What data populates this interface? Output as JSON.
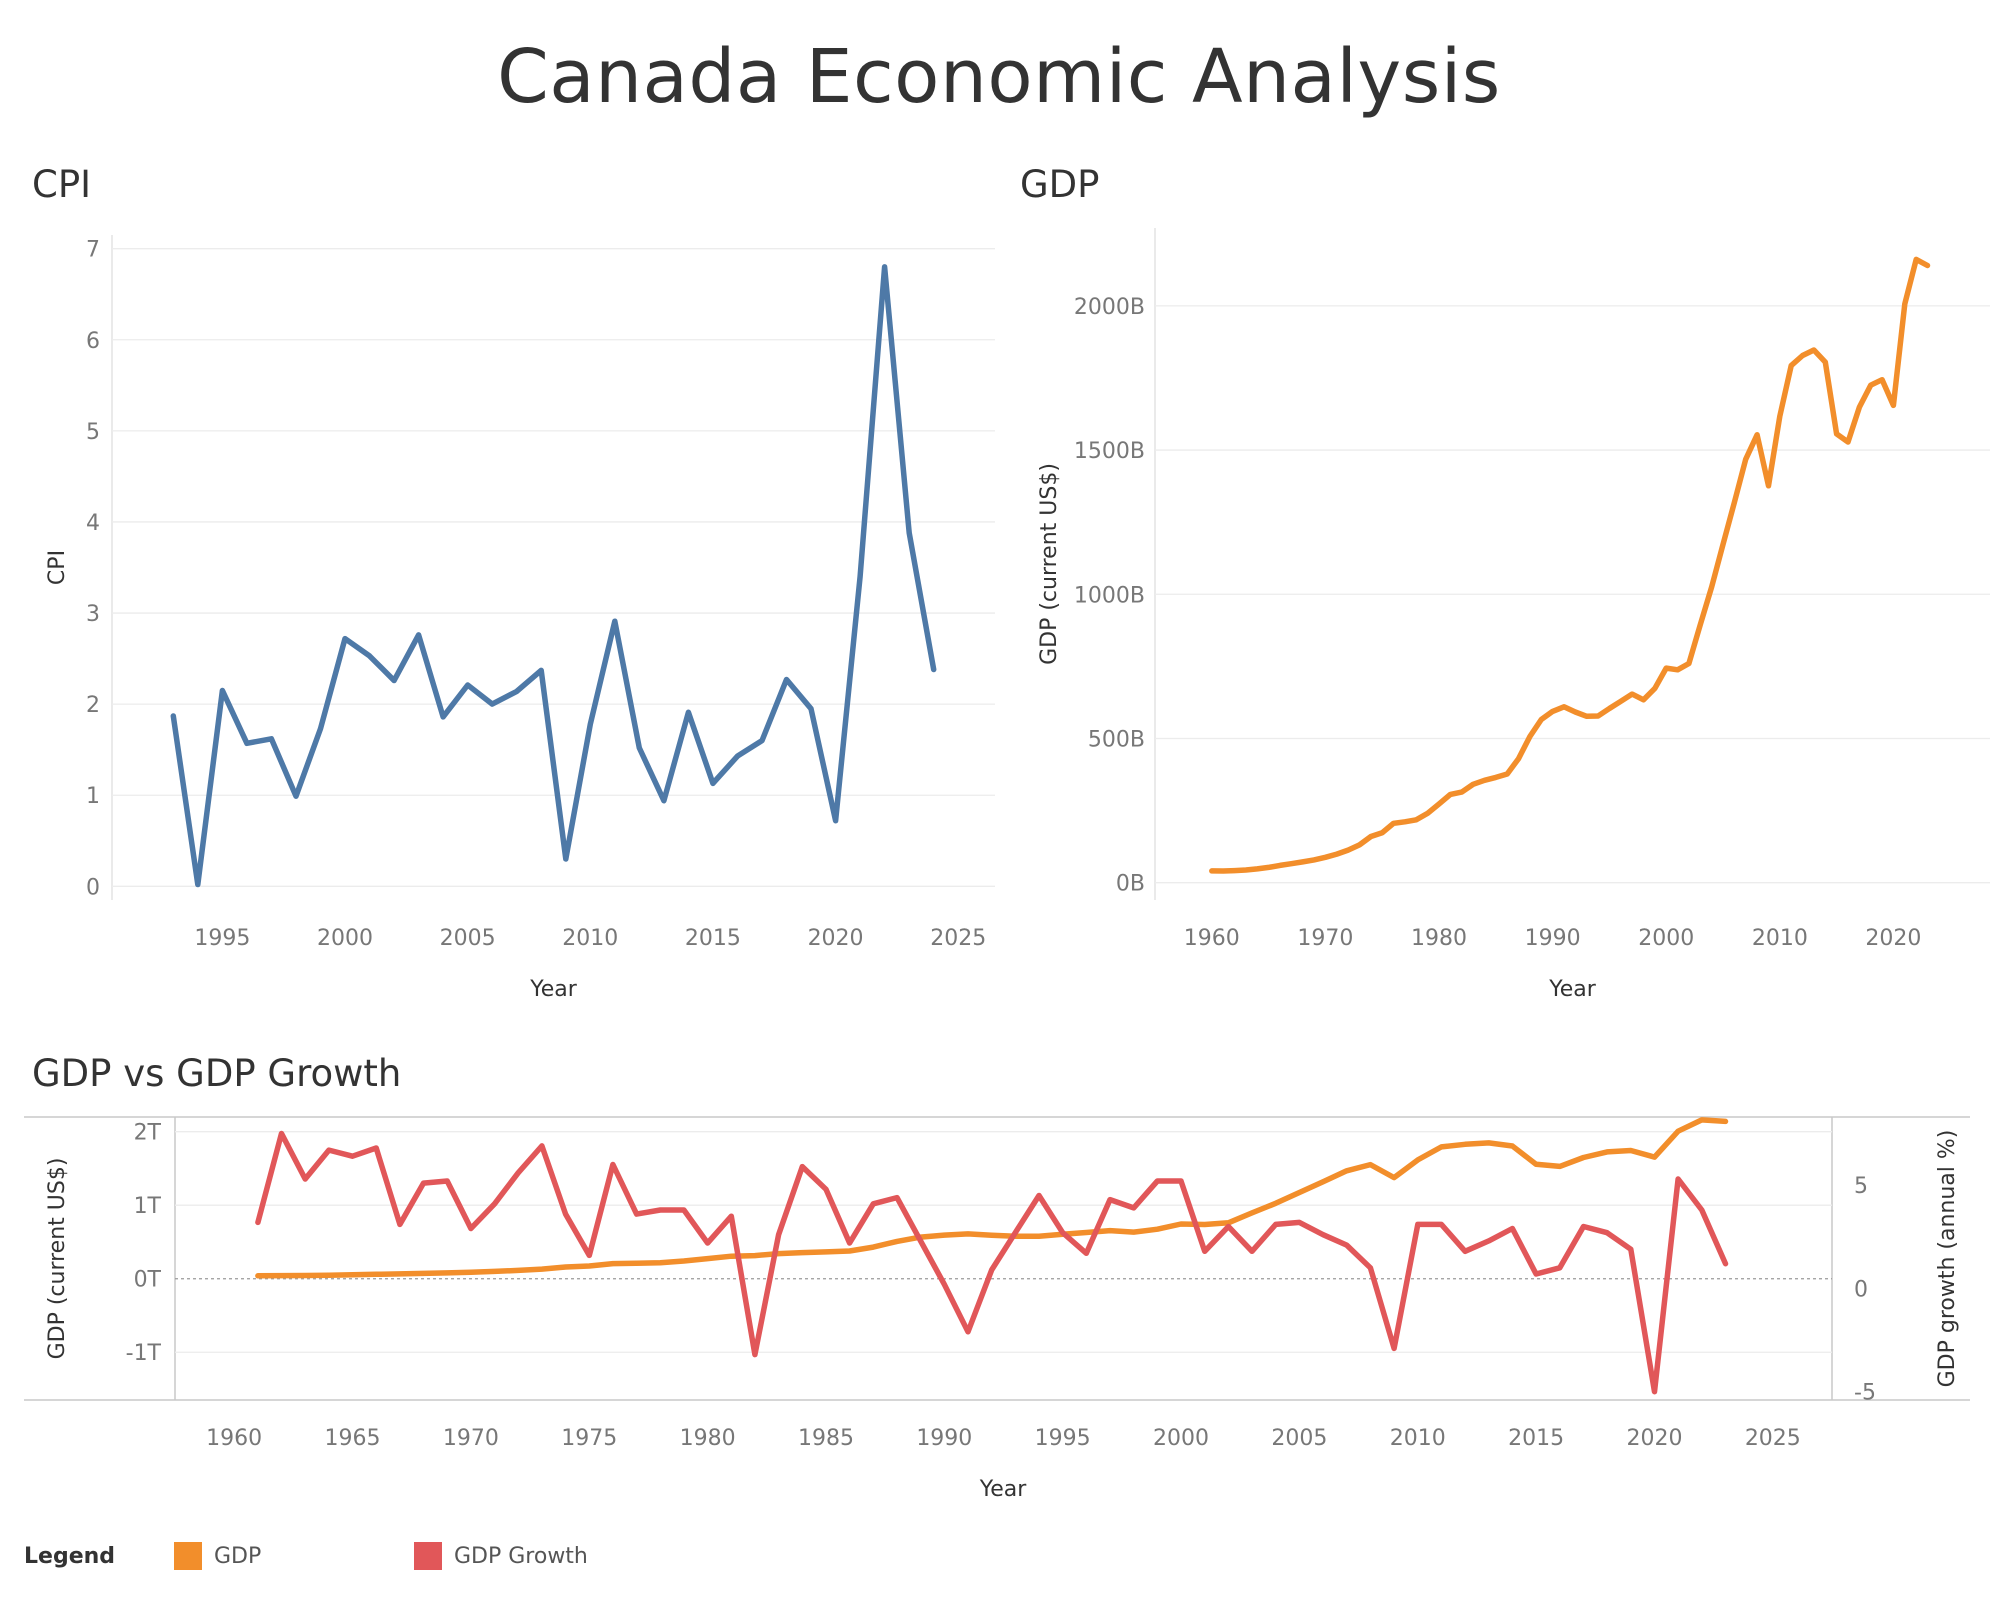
{
  "title": "Canada Economic Analysis",
  "colors": {
    "cpi": "#4e79a7",
    "gdp": "#f28e2b",
    "growth": "#e15759"
  },
  "chart_data": [
    {
      "id": "cpi",
      "type": "line",
      "title": "CPI",
      "xlabel": "Year",
      "ylabel": "CPI",
      "xlim": [
        1990.5,
        2026.5
      ],
      "ylim": [
        -0.15,
        7.15
      ],
      "xticks": [
        1995,
        2000,
        2005,
        2010,
        2015,
        2020,
        2025
      ],
      "yticks": [
        0,
        1,
        2,
        3,
        4,
        5,
        6,
        7
      ],
      "grid": true,
      "series": [
        {
          "x": [
            1993,
            1994,
            1995,
            1996,
            1997,
            1998,
            1999,
            2000,
            2001,
            2002,
            2003,
            2004,
            2005,
            2006,
            2007,
            2008,
            2009,
            2010,
            2011,
            2012,
            2013,
            2014,
            2015,
            2016,
            2017,
            2018,
            2019,
            2020,
            2021,
            2022,
            2023,
            2024
          ],
          "values": [
            1.87,
            0.02,
            2.15,
            1.57,
            1.62,
            0.99,
            1.73,
            2.72,
            2.53,
            2.26,
            2.76,
            1.86,
            2.21,
            2.0,
            2.14,
            2.37,
            0.3,
            1.78,
            2.91,
            1.52,
            0.94,
            1.91,
            1.13,
            1.43,
            1.6,
            2.27,
            1.95,
            0.72,
            3.4,
            6.8,
            3.88,
            2.38
          ]
        }
      ]
    },
    {
      "id": "gdp",
      "type": "line",
      "title": "GDP",
      "xlabel": "Year",
      "ylabel": "GDP (current US$)",
      "xlim": [
        1955,
        2028.5
      ],
      "ylim": [
        -60,
        2270
      ],
      "xticks": [
        1960,
        1970,
        1980,
        1990,
        2000,
        2010,
        2020
      ],
      "yticks": [
        0,
        500,
        1000,
        1500,
        2000
      ],
      "ytick_labels": [
        "0B",
        "500B",
        "1000B",
        "1500B",
        "2000B"
      ],
      "y_units": "billions of current US$",
      "grid": true,
      "series": [
        {
          "x": [
            1960,
            1961,
            1962,
            1963,
            1964,
            1965,
            1966,
            1967,
            1968,
            1969,
            1970,
            1971,
            1972,
            1973,
            1974,
            1975,
            1976,
            1977,
            1978,
            1979,
            1980,
            1981,
            1982,
            1983,
            1984,
            1985,
            1986,
            1987,
            1988,
            1989,
            1990,
            1991,
            1992,
            1993,
            1994,
            1995,
            1996,
            1997,
            1998,
            1999,
            2000,
            2001,
            2002,
            2003,
            2004,
            2005,
            2006,
            2007,
            2008,
            2009,
            2010,
            2011,
            2012,
            2013,
            2014,
            2015,
            2016,
            2017,
            2018,
            2019,
            2020,
            2021,
            2022,
            2023
          ],
          "values": [
            41,
            40.5,
            42,
            44,
            48,
            53,
            60,
            66,
            72,
            79,
            88,
            99,
            113,
            131,
            160,
            173,
            206,
            211,
            218,
            241,
            273,
            306,
            314,
            341,
            355,
            365,
            377,
            430,
            507,
            566,
            594,
            610,
            592,
            577,
            578,
            604,
            629,
            654,
            634,
            674,
            744,
            738,
            760,
            895,
            1026,
            1173,
            1319,
            1468,
            1553,
            1376,
            1617,
            1793,
            1828,
            1847,
            1805,
            1556,
            1528,
            1649,
            1725,
            1744,
            1655,
            2007,
            2161,
            2140
          ]
        }
      ]
    },
    {
      "id": "combo",
      "type": "line",
      "title": "GDP vs GDP Growth",
      "xlabel": "Year",
      "ylabel": "GDP (current US$)",
      "ylabel_right": "GDP growth (annual %)",
      "xlim": [
        1957.5,
        2027.5
      ],
      "ylim": [
        -1.65,
        2.2
      ],
      "ylim_right": [
        -5.4,
        8.3
      ],
      "xticks": [
        1960,
        1965,
        1970,
        1975,
        1980,
        1985,
        1990,
        1995,
        2000,
        2005,
        2010,
        2015,
        2020,
        2025
      ],
      "yticks": [
        -1,
        0,
        1,
        2
      ],
      "ytick_labels": [
        "-1T",
        "0T",
        "1T",
        "2T"
      ],
      "yticks_right": [
        -5,
        0,
        5
      ],
      "zero_line": true,
      "grid": true,
      "series": [
        {
          "name": "GDP",
          "axis": "left",
          "y_units": "trillions of current US$",
          "x": [
            1961,
            1962,
            1963,
            1964,
            1965,
            1966,
            1967,
            1968,
            1969,
            1970,
            1971,
            1972,
            1973,
            1974,
            1975,
            1976,
            1977,
            1978,
            1979,
            1980,
            1981,
            1982,
            1983,
            1984,
            1985,
            1986,
            1987,
            1988,
            1989,
            1990,
            1991,
            1992,
            1993,
            1994,
            1995,
            1996,
            1997,
            1998,
            1999,
            2000,
            2001,
            2002,
            2003,
            2004,
            2005,
            2006,
            2007,
            2008,
            2009,
            2010,
            2011,
            2012,
            2013,
            2014,
            2015,
            2016,
            2017,
            2018,
            2019,
            2020,
            2021,
            2022,
            2023
          ],
          "values": [
            0.04,
            0.042,
            0.044,
            0.048,
            0.053,
            0.06,
            0.066,
            0.072,
            0.079,
            0.088,
            0.099,
            0.113,
            0.131,
            0.16,
            0.173,
            0.206,
            0.211,
            0.218,
            0.241,
            0.273,
            0.306,
            0.314,
            0.341,
            0.355,
            0.365,
            0.377,
            0.43,
            0.507,
            0.566,
            0.594,
            0.61,
            0.592,
            0.577,
            0.578,
            0.604,
            0.629,
            0.654,
            0.634,
            0.674,
            0.744,
            0.738,
            0.76,
            0.895,
            1.026,
            1.173,
            1.319,
            1.468,
            1.553,
            1.376,
            1.617,
            1.793,
            1.828,
            1.847,
            1.805,
            1.556,
            1.528,
            1.649,
            1.725,
            1.744,
            1.655,
            2.007,
            2.161,
            2.14
          ]
        },
        {
          "name": "GDP Growth",
          "axis": "right",
          "x": [
            1961,
            1962,
            1963,
            1964,
            1965,
            1966,
            1967,
            1968,
            1969,
            1970,
            1971,
            1972,
            1973,
            1974,
            1975,
            1976,
            1977,
            1978,
            1979,
            1980,
            1981,
            1982,
            1983,
            1984,
            1985,
            1986,
            1987,
            1988,
            1989,
            1990,
            1991,
            1992,
            1993,
            1994,
            1995,
            1996,
            1997,
            1998,
            1999,
            2000,
            2001,
            2002,
            2003,
            2004,
            2005,
            2006,
            2007,
            2008,
            2009,
            2010,
            2011,
            2012,
            2013,
            2014,
            2015,
            2016,
            2017,
            2018,
            2019,
            2020,
            2021,
            2022,
            2023
          ],
          "values": [
            3.2,
            7.5,
            5.3,
            6.7,
            6.4,
            6.8,
            3.1,
            5.1,
            5.2,
            2.9,
            4.1,
            5.6,
            6.9,
            3.6,
            1.6,
            6.0,
            3.6,
            3.8,
            3.8,
            2.2,
            3.5,
            -3.2,
            2.6,
            5.9,
            4.8,
            2.2,
            4.1,
            4.4,
            2.3,
            0.2,
            -2.1,
            0.9,
            2.7,
            4.5,
            2.7,
            1.7,
            4.3,
            3.9,
            5.2,
            5.2,
            1.8,
            3.0,
            1.8,
            3.1,
            3.2,
            2.6,
            2.1,
            1.0,
            -2.9,
            3.1,
            3.1,
            1.8,
            2.3,
            2.9,
            0.7,
            1.0,
            3.0,
            2.7,
            1.9,
            -5.0,
            5.3,
            3.8,
            1.2
          ]
        }
      ]
    }
  ],
  "legend": {
    "title": "Legend",
    "items": [
      {
        "label": "GDP",
        "color": "#f28e2b"
      },
      {
        "label": "GDP Growth",
        "color": "#e15759"
      }
    ]
  }
}
